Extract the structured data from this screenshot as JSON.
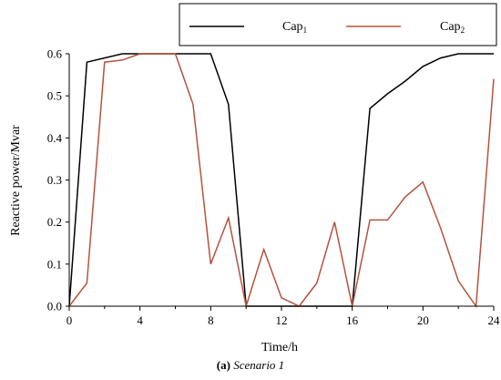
{
  "chart_data": {
    "type": "line",
    "x": [
      0,
      1,
      2,
      3,
      4,
      5,
      6,
      7,
      8,
      9,
      10,
      11,
      12,
      13,
      14,
      15,
      16,
      17,
      18,
      19,
      20,
      21,
      22,
      23,
      24
    ],
    "series": [
      {
        "name": "Cap1",
        "name_base": "Cap",
        "name_sub": "1",
        "color": "#000000",
        "values": [
          0,
          0.58,
          0.59,
          0.6,
          0.6,
          0.6,
          0.6,
          0.6,
          0.6,
          0.48,
          0,
          0,
          0,
          0,
          0,
          0,
          0,
          0.47,
          0.505,
          0.535,
          0.57,
          0.59,
          0.6,
          0.6,
          0.6
        ]
      },
      {
        "name": "Cap2",
        "name_base": "Cap",
        "name_sub": "2",
        "color": "#b5533c",
        "values": [
          0,
          0.055,
          0.58,
          0.585,
          0.6,
          0.6,
          0.6,
          0.48,
          0.1,
          0.21,
          0,
          0.135,
          0.02,
          0,
          0.055,
          0.2,
          0,
          0.205,
          0.205,
          0.26,
          0.295,
          0.185,
          0.06,
          0,
          0.54
        ]
      }
    ],
    "xlabel": "Time/h",
    "ylabel": "Reactive power/Mvar",
    "xlim": [
      0,
      24
    ],
    "ylim": [
      0,
      0.6
    ],
    "xticks": [
      "0",
      "4",
      "8",
      "12",
      "16",
      "20",
      "24"
    ],
    "yticks": [
      "0.0",
      "0.1",
      "0.2",
      "0.3",
      "0.4",
      "0.5",
      "0.6"
    ],
    "grid": false,
    "legend_position": "top-right, above plot"
  },
  "caption": {
    "label": "(a)",
    "text": "Scenario 1"
  }
}
